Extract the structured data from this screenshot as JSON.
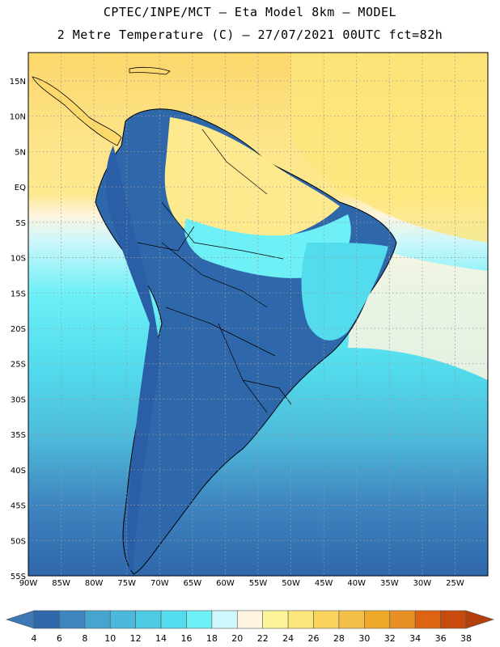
{
  "header": {
    "line1": "CPTEC/INPE/MCT –  Eta Model 8km – MODEL",
    "line2": "2 Metre Temperature (C) – 27/07/2021 00UTC fct=82h"
  },
  "map": {
    "lon_range": [
      -90,
      -20
    ],
    "lat_range": [
      -55,
      19
    ],
    "lon_ticks": [
      "90W",
      "85W",
      "80W",
      "75W",
      "70W",
      "65W",
      "60W",
      "55W",
      "50W",
      "45W",
      "40W",
      "35W",
      "30W",
      "25W"
    ],
    "lat_ticks": [
      "15N",
      "10N",
      "5N",
      "EQ",
      "5S",
      "10S",
      "15S",
      "20S",
      "25S",
      "30S",
      "35S",
      "40S",
      "45S",
      "50S",
      "55S"
    ],
    "colors": {
      "land_cold": "#2a5fa8",
      "land_mid": "#3d8fc9",
      "ocean_cool": "#4cc4de",
      "ocean_mid": "#56dff0",
      "ocean_warm": "#c8f4f8",
      "tropical": "#fcd96a",
      "tropical_light": "#fde98e",
      "grid": "#9a9a9a",
      "border": "#000000"
    }
  },
  "colorbar": {
    "labels": [
      "4",
      "6",
      "8",
      "10",
      "12",
      "14",
      "16",
      "18",
      "20",
      "22",
      "24",
      "26",
      "28",
      "30",
      "32",
      "34",
      "36",
      "38"
    ],
    "colors": [
      "#3b78b5",
      "#2f67ab",
      "#3f86c0",
      "#47a4cf",
      "#4db9da",
      "#4ccbe2",
      "#52dced",
      "#6ef0f7",
      "#cdf7fa",
      "#fff4df",
      "#fdf49a",
      "#fce67a",
      "#f9d35c",
      "#f4c04a",
      "#eea82a",
      "#e88f25",
      "#dc6412",
      "#c84a0c",
      "#b33f0a"
    ]
  }
}
